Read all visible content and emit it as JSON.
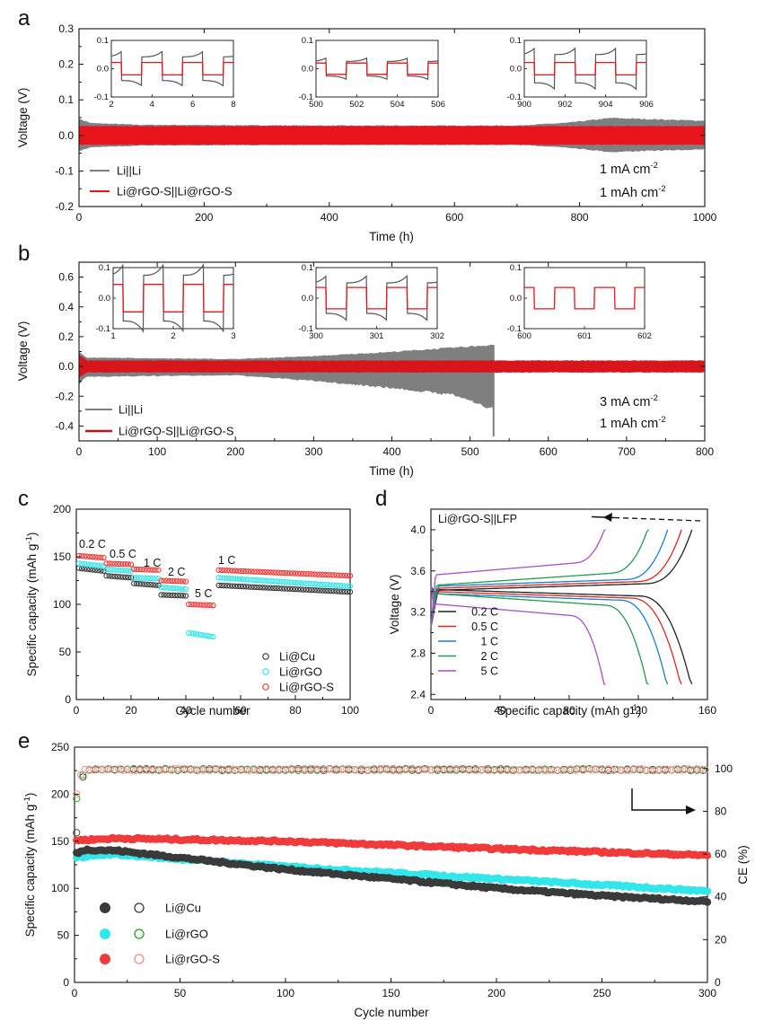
{
  "colors": {
    "li": "#7f7f7f",
    "li_dark": "#555555",
    "rgos": "#e8131b",
    "cu_d": "#3a3a3a",
    "rgo_d": "#33e6ea",
    "rgos_d": "#ef3b3b",
    "curve_02": "#222222",
    "curve_05": "#e4241f",
    "curve_1": "#1c7fd6",
    "curve_2": "#1e9e4a",
    "curve_5": "#a64fd0"
  },
  "chart_data": [
    {
      "id": "a",
      "type": "line",
      "panel_label": "a",
      "xlabel": "Time (h)",
      "ylabel": "Voltage (V)",
      "xlim": [
        0,
        1000
      ],
      "ylim": [
        -0.2,
        0.3
      ],
      "xticks": [
        "0",
        "200",
        "400",
        "600",
        "800",
        "1000"
      ],
      "yticks": [
        "-0.2",
        "-0.1",
        "0.0",
        "0.1",
        "0.2",
        "0.3"
      ],
      "legend": [
        "Li||Li",
        "Li@rGO-S||Li@rGO-S"
      ],
      "conditions": [
        "1 mA cm",
        "1 mAh cm"
      ],
      "cond_exp": "-2",
      "series": [
        {
          "name": "Li||Li",
          "amplitude": {
            "x": [
              0,
              20,
              100,
              400,
              700,
              780,
              850,
              900,
              1000
            ],
            "y": [
              0.047,
              0.035,
              0.03,
              0.028,
              0.028,
              0.036,
              0.05,
              0.047,
              0.042
            ]
          }
        },
        {
          "name": "Li@rGO-S||Li@rGO-S",
          "amplitude": {
            "x": [
              0,
              1000
            ],
            "y": [
              0.026,
              0.026
            ]
          }
        }
      ],
      "insets": [
        {
          "xlim": [
            2,
            8
          ],
          "xticks": [
            "2",
            "4",
            "6",
            "8"
          ],
          "ylim": [
            -0.1,
            0.1
          ],
          "yticks": [
            "-0.1",
            "0.0",
            "0.1"
          ],
          "amp_li": 0.042,
          "amp_s": 0.022,
          "period": 2
        },
        {
          "xlim": [
            500,
            506
          ],
          "xticks": [
            "500",
            "502",
            "504",
            "506"
          ],
          "ylim": [
            -0.1,
            0.1
          ],
          "yticks": [
            "-0.1",
            "0.0",
            "0.1"
          ],
          "amp_li": 0.026,
          "amp_s": 0.02,
          "period": 2
        },
        {
          "xlim": [
            900,
            906
          ],
          "xticks": [
            "900",
            "902",
            "904",
            "906"
          ],
          "ylim": [
            -0.1,
            0.1
          ],
          "yticks": [
            "-0.1",
            "0.0",
            "0.1"
          ],
          "amp_li": 0.05,
          "amp_s": 0.022,
          "period": 2
        }
      ]
    },
    {
      "id": "b",
      "type": "line",
      "panel_label": "b",
      "xlabel": "Time (h)",
      "ylabel": "Voltage (V)",
      "xlim": [
        0,
        800
      ],
      "ylim": [
        -0.5,
        0.7
      ],
      "xticks": [
        "0",
        "100",
        "200",
        "300",
        "400",
        "500",
        "600",
        "700",
        "800"
      ],
      "yticks": [
        "-0.4",
        "-0.2",
        "0.0",
        "0.2",
        "0.4",
        "0.6"
      ],
      "legend": [
        "Li||Li",
        "Li@rGO-S||Li@rGO-S"
      ],
      "conditions": [
        "3 mA cm",
        "1 mAh cm"
      ],
      "cond_exp": "-2",
      "series": [
        {
          "name": "Li||Li",
          "end_x": 532,
          "upper": {
            "x": [
              0,
              10,
              200,
              300,
              400,
              480,
              530
            ],
            "y": [
              0.1,
              0.06,
              0.05,
              0.07,
              0.1,
              0.13,
              0.15
            ]
          },
          "lower": {
            "x": [
              0,
              10,
              200,
              300,
              400,
              480,
              530
            ],
            "y": [
              -0.12,
              -0.07,
              -0.06,
              -0.1,
              -0.15,
              -0.2,
              -0.3
            ]
          },
          "spike_min": -0.47
        },
        {
          "name": "Li@rGO-S||Li@rGO-S",
          "upper": {
            "x": [
              0,
              10,
              800
            ],
            "y": [
              0.08,
              0.04,
              0.04
            ]
          },
          "lower": {
            "x": [
              0,
              10,
              800
            ],
            "y": [
              -0.08,
              -0.04,
              -0.04
            ]
          }
        }
      ],
      "insets": [
        {
          "xlim": [
            1,
            3
          ],
          "xticks": [
            "1",
            "2",
            "3"
          ],
          "ylim": [
            -0.1,
            0.1
          ],
          "yticks": [
            "-0.1",
            "0.0",
            "0.1"
          ],
          "amp_li": 0.075,
          "amp_s": 0.045,
          "period": 0.6667
        },
        {
          "xlim": [
            300,
            302
          ],
          "xticks": [
            "300",
            "301",
            "302"
          ],
          "ylim": [
            -0.1,
            0.1
          ],
          "yticks": [
            "-0.1",
            "0.0",
            "0.1"
          ],
          "amp_li": 0.05,
          "amp_s": 0.035,
          "period": 0.6667
        },
        {
          "xlim": [
            600,
            602
          ],
          "xticks": [
            "600",
            "601",
            "602"
          ],
          "ylim": [
            -0.1,
            0.1
          ],
          "yticks": [
            "-0.1",
            "0.0",
            "0.1"
          ],
          "amp_li": 0,
          "amp_s": 0.035,
          "period": 0.6667
        }
      ]
    },
    {
      "id": "c",
      "type": "scatter",
      "panel_label": "c",
      "xlabel": "Cycle number",
      "ylabel": "Specific capacity (mAh g",
      "ylabel_exp": "-1",
      "xlim": [
        0,
        100
      ],
      "ylim": [
        0,
        200
      ],
      "xticks": [
        "0",
        "20",
        "40",
        "60",
        "80",
        "100"
      ],
      "yticks": [
        "0",
        "50",
        "100",
        "150",
        "200"
      ],
      "rate_labels": [
        "0.2 C",
        "0.5 C",
        "1 C",
        "2 C",
        "5 C",
        "1 C"
      ],
      "legend": [
        "Li@Cu",
        "Li@rGO",
        "Li@rGO-S"
      ],
      "series": [
        {
          "name": "Li@Cu",
          "segments": [
            [
              1,
              10,
              138,
              135
            ],
            [
              11,
              20,
              130,
              128
            ],
            [
              21,
              30,
              122,
              120
            ],
            [
              31,
              40,
              110,
              109
            ],
            [
              52,
              100,
              120,
              113
            ]
          ]
        },
        {
          "name": "Li@rGO",
          "segments": [
            [
              1,
              10,
              143,
              140
            ],
            [
              11,
              20,
              137,
              135
            ],
            [
              21,
              30,
              128,
              127
            ],
            [
              31,
              40,
              118,
              116
            ],
            [
              41,
              50,
              70,
              66
            ],
            [
              52,
              100,
              128,
              119
            ]
          ]
        },
        {
          "name": "Li@rGO-S",
          "segments": [
            [
              1,
              10,
              151,
              149
            ],
            [
              11,
              20,
              143,
              142
            ],
            [
              21,
              30,
              137,
              136
            ],
            [
              31,
              40,
              125,
              124
            ],
            [
              41,
              50,
              100,
              99
            ],
            [
              52,
              100,
              136,
              130
            ]
          ]
        }
      ]
    },
    {
      "id": "d",
      "type": "line",
      "panel_label": "d",
      "xlabel": "Specific capacity (mAh g",
      "xlabel_exp": "-1",
      "ylabel": "Voltage (V)",
      "xlim": [
        0,
        160
      ],
      "ylim": [
        2.35,
        4.2
      ],
      "xticks": [
        "0",
        "40",
        "80",
        "120",
        "160"
      ],
      "yticks": [
        "2.4",
        "2.8",
        "3.2",
        "3.6",
        "4.0"
      ],
      "title": "Li@rGO-S||LFP",
      "legend": [
        "0.2 C",
        "0.5 C",
        "1 C",
        "2 C",
        "5 C"
      ],
      "series": [
        {
          "name": "0.2 C",
          "capacity": 151,
          "charge_plateau": 3.45,
          "discharge_plateau": 3.38
        },
        {
          "name": "0.5 C",
          "capacity": 145,
          "charge_plateau": 3.47,
          "discharge_plateau": 3.36
        },
        {
          "name": "1 C",
          "capacity": 137,
          "charge_plateau": 3.49,
          "discharge_plateau": 3.34
        },
        {
          "name": "2 C",
          "capacity": 126,
          "charge_plateau": 3.53,
          "discharge_plateau": 3.31
        },
        {
          "name": "5 C",
          "capacity": 101,
          "charge_plateau": 3.63,
          "discharge_plateau": 3.21
        }
      ]
    },
    {
      "id": "e",
      "type": "scatter",
      "panel_label": "e",
      "xlabel": "Cycle number",
      "ylabel": "Specific capacity (mAh g",
      "ylabel_exp": "-1",
      "y2label": "CE (%)",
      "xlim": [
        0,
        300
      ],
      "ylim": [
        0,
        250
      ],
      "y2lim": [
        0,
        110
      ],
      "xticks": [
        "0",
        "50",
        "100",
        "150",
        "200",
        "250",
        "300"
      ],
      "yticks": [
        "0",
        "50",
        "100",
        "150",
        "200",
        "250"
      ],
      "y2ticks": [
        "0",
        "20",
        "40",
        "60",
        "80",
        "100"
      ],
      "legend": [
        "Li@Cu",
        "Li@rGO",
        "Li@rGO-S"
      ],
      "series": [
        {
          "name": "Li@Cu",
          "capacity": {
            "x": [
              1,
              5,
              20,
              60,
              100,
              150,
              200,
              250,
              300
            ],
            "y": [
              137,
              141,
              140,
              130,
              120,
              110,
              100,
              92,
              86
            ]
          },
          "ce_start": [
            70,
            85,
            93,
            96
          ]
        },
        {
          "name": "Li@rGO",
          "capacity": {
            "x": [
              1,
              20,
              100,
              200,
              300
            ],
            "y": [
              133,
              136,
              123,
              110,
              97
            ]
          },
          "ce_start": [
            86,
            90,
            95,
            97
          ]
        },
        {
          "name": "Li@rGO-S",
          "capacity": {
            "x": [
              1,
              20,
              100,
              200,
              300
            ],
            "y": [
              151,
              153,
              150,
              142,
              135
            ]
          },
          "ce_start": [
            88,
            94,
            97,
            98
          ]
        }
      ],
      "ce_plateau": 99.5
    }
  ]
}
